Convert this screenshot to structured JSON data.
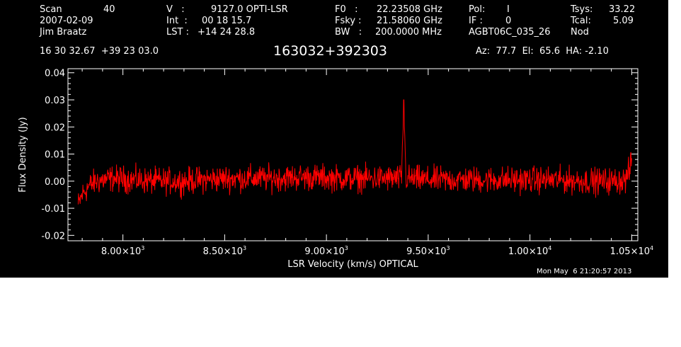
{
  "header": {
    "scan_label": "Scan",
    "scan_number": "40",
    "date": "2007-02-09",
    "observer": "Jim Braatz",
    "ra_dec": "16 30 32.67  +39 23 03.0",
    "v_label": "V   :",
    "v_value": "9127.0 OPTI-LSR",
    "int_label": "Int  :",
    "int_value": "00 18 15.7",
    "lst_label": "LST :",
    "lst_value": "+14 24 28.8",
    "f0_label": "F0   :",
    "f0_value": "22.23508 GHz",
    "fsky_label": "Fsky :",
    "fsky_value": "21.58060 GHz",
    "bw_label": "BW   :",
    "bw_value": "200.0000 MHz",
    "pol_label": "Pol:",
    "pol_value": "I",
    "if_label": "IF :",
    "if_value": "0",
    "project": "AGBT06C_035_26",
    "tsys_label": "Tsys:",
    "tsys_value": "33.22",
    "tcal_label": "Tcal:",
    "tcal_value": "5.09",
    "mode": "Nod",
    "source": "163032+392303",
    "pointing": "Az:  77.7  El:  65.6  HA: -2.10"
  },
  "footer": {
    "timestamp": "Mon May  6 21:20:57 2013"
  },
  "chart_data": {
    "type": "line",
    "title": "163032+392303",
    "xlabel": "LSR Velocity (km/s) OPTICAL",
    "ylabel": "Flux Density (Jy)",
    "xlim": [
      7730,
      10530
    ],
    "ylim": [
      -0.022,
      0.0415
    ],
    "x_ticks": [
      {
        "value": 8000,
        "mant": "8.00",
        "exp": "3"
      },
      {
        "value": 8500,
        "mant": "8.50",
        "exp": "3"
      },
      {
        "value": 9000,
        "mant": "9.00",
        "exp": "3"
      },
      {
        "value": 9500,
        "mant": "9.50",
        "exp": "3"
      },
      {
        "value": 10000,
        "mant": "1.00",
        "exp": "4"
      },
      {
        "value": 10500,
        "mant": "1.05",
        "exp": "4"
      }
    ],
    "y_ticks": [
      {
        "value": 0.04,
        "label": "0.04"
      },
      {
        "value": 0.03,
        "label": "0.03"
      },
      {
        "value": 0.02,
        "label": "0.02"
      },
      {
        "value": 0.01,
        "label": "0.01"
      },
      {
        "value": 0.0,
        "label": "0.00"
      },
      {
        "value": -0.01,
        "label": "-0.01"
      },
      {
        "value": -0.02,
        "label": "-0.02"
      }
    ],
    "series": [
      {
        "color": "#ff0000",
        "x": [
          7780,
          7800,
          7830,
          7870,
          7950,
          8050,
          8150,
          8300,
          8500,
          8700,
          8900,
          9100,
          9300,
          9370,
          9380,
          9390,
          9500,
          9700,
          9900,
          10100,
          10300,
          10400,
          10470,
          10490,
          10500
        ],
        "y": [
          -0.009,
          -0.005,
          -0.002,
          0.0,
          0.001,
          0.0005,
          0.0,
          0.0,
          0.001,
          0.001,
          0.0015,
          0.001,
          0.001,
          0.001,
          0.03,
          0.001,
          0.0005,
          0.0005,
          0.0005,
          0.0005,
          0.0,
          0.0,
          0.0005,
          0.004,
          0.008
        ],
        "noise_rms": 0.003
      }
    ]
  }
}
